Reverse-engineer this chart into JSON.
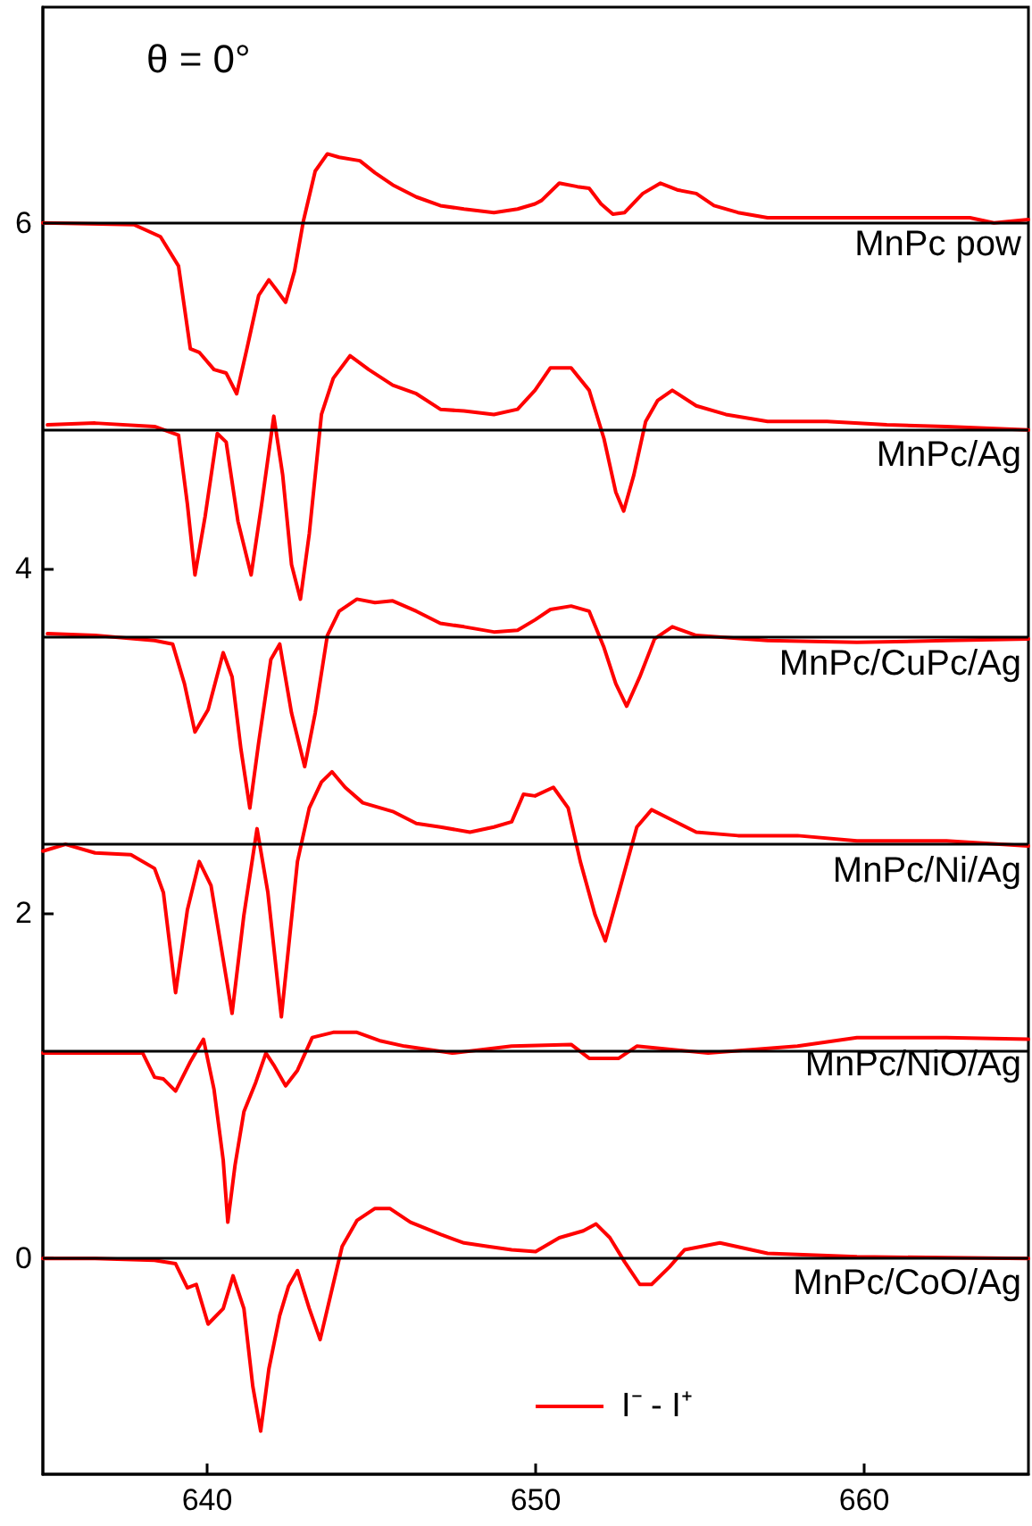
{
  "chart_data": {
    "type": "line",
    "title": "θ = 0°",
    "legend_title": "I⁻ - I⁺",
    "legend": "bottom",
    "grid": false,
    "marker": "none",
    "line_style": "solid",
    "xlim": [
      635,
      665
    ],
    "xticks": [
      640,
      650,
      660
    ],
    "ylim": [
      -1.25,
      7.25
    ],
    "yticks": [
      0,
      2,
      4,
      6
    ],
    "ref_lines": [
      {
        "axis": "y",
        "value": 6,
        "color": "#000000"
      },
      {
        "axis": "y",
        "value": 4.8,
        "color": "#000000"
      },
      {
        "axis": "y",
        "value": 3.6,
        "color": "#000000"
      },
      {
        "axis": "y",
        "value": 2.4,
        "color": "#000000"
      },
      {
        "axis": "y",
        "value": 1.2,
        "color": "#000000"
      },
      {
        "axis": "y",
        "value": 0,
        "color": "#000000"
      }
    ],
    "series": [
      {
        "name": "MnPc pow",
        "color": "#ff0000",
        "x": [
          635,
          637.77,
          638.58,
          639.13,
          639.49,
          639.76,
          640.21,
          640.58,
          640.9,
          641.21,
          641.57,
          641.88,
          642.12,
          642.39,
          642.66,
          642.93,
          643.29,
          643.66,
          644.02,
          644.65,
          645.11,
          645.65,
          646.37,
          647.1,
          647.82,
          648.73,
          649.45,
          649.98,
          650.18,
          650.72,
          651.27,
          651.63,
          651.99,
          652.35,
          652.71,
          653.26,
          653.8,
          654.34,
          654.89,
          655.43,
          656.16,
          657.06,
          658.87,
          661.59,
          663.22,
          663.95,
          665
        ],
        "values": [
          6.0,
          5.99,
          5.92,
          5.75,
          5.27,
          5.25,
          5.15,
          5.13,
          5.01,
          5.27,
          5.58,
          5.67,
          5.61,
          5.54,
          5.72,
          6.01,
          6.3,
          6.4,
          6.38,
          6.36,
          6.29,
          6.22,
          6.15,
          6.1,
          6.08,
          6.06,
          6.08,
          6.11,
          6.13,
          6.23,
          6.21,
          6.2,
          6.11,
          6.05,
          6.06,
          6.17,
          6.23,
          6.19,
          6.17,
          6.1,
          6.06,
          6.03,
          6.03,
          6.03,
          6.03,
          6.0,
          6.02
        ]
      },
      {
        "name": "MnPc/Ag",
        "color": "#ff0000",
        "x": [
          635.14,
          636.59,
          638.4,
          639.13,
          639.4,
          639.63,
          639.94,
          640.31,
          640.58,
          640.94,
          641.34,
          641.66,
          642.03,
          642.3,
          642.57,
          642.84,
          643.11,
          643.48,
          643.84,
          644.35,
          644.92,
          645.65,
          646.37,
          647.1,
          647.82,
          648.73,
          649.45,
          649.98,
          650.45,
          651.08,
          651.63,
          652.08,
          652.44,
          652.68,
          652.99,
          653.35,
          653.71,
          654.16,
          654.89,
          655.79,
          657.06,
          658.87,
          660.69,
          662.5,
          665
        ],
        "values": [
          4.83,
          4.84,
          4.82,
          4.77,
          4.37,
          3.96,
          4.3,
          4.78,
          4.73,
          4.27,
          3.96,
          4.37,
          4.88,
          4.54,
          4.02,
          3.82,
          4.2,
          4.89,
          5.1,
          5.23,
          5.15,
          5.06,
          5.01,
          4.92,
          4.91,
          4.89,
          4.92,
          5.03,
          5.16,
          5.16,
          5.03,
          4.75,
          4.44,
          4.33,
          4.54,
          4.85,
          4.97,
          5.03,
          4.94,
          4.89,
          4.85,
          4.85,
          4.83,
          4.82,
          4.8
        ]
      },
      {
        "name": "MnPc/CuPc/Ag",
        "color": "#ff0000",
        "x": [
          635.14,
          636.59,
          638.4,
          638.95,
          639.31,
          639.63,
          640.03,
          640.49,
          640.76,
          641.03,
          641.3,
          641.57,
          641.94,
          642.21,
          642.57,
          642.97,
          643.29,
          643.66,
          644.02,
          644.56,
          645.11,
          645.65,
          646.37,
          647.1,
          647.82,
          648.73,
          649.45,
          649.98,
          650.45,
          651.08,
          651.63,
          652.08,
          652.44,
          652.77,
          653.17,
          653.62,
          654.16,
          654.89,
          657.06,
          659.78,
          662.5,
          665
        ],
        "values": [
          3.62,
          3.61,
          3.58,
          3.56,
          3.33,
          3.05,
          3.18,
          3.51,
          3.37,
          2.95,
          2.61,
          2.99,
          3.47,
          3.56,
          3.16,
          2.85,
          3.16,
          3.61,
          3.75,
          3.82,
          3.8,
          3.81,
          3.75,
          3.68,
          3.66,
          3.63,
          3.64,
          3.7,
          3.76,
          3.78,
          3.75,
          3.54,
          3.33,
          3.2,
          3.37,
          3.59,
          3.66,
          3.61,
          3.58,
          3.57,
          3.58,
          3.59
        ]
      },
      {
        "name": "MnPc/Ni/Ag",
        "color": "#ff0000",
        "x": [
          635,
          635.69,
          636.59,
          637.68,
          638.4,
          638.67,
          639.04,
          639.4,
          639.76,
          640.12,
          640.76,
          641.12,
          641.52,
          641.85,
          642.26,
          642.75,
          643.11,
          643.48,
          643.8,
          644.2,
          644.74,
          645.65,
          646.37,
          647.1,
          648,
          648.73,
          649.27,
          649.63,
          649.98,
          650.54,
          650.99,
          651.36,
          651.81,
          652.12,
          652.53,
          653.08,
          653.53,
          654.16,
          654.89,
          656.16,
          657.97,
          659.78,
          662.5,
          665
        ],
        "values": [
          2.36,
          2.4,
          2.35,
          2.34,
          2.26,
          2.12,
          1.54,
          2.02,
          2.3,
          2.16,
          1.42,
          1.99,
          2.49,
          2.12,
          1.4,
          2.3,
          2.61,
          2.76,
          2.82,
          2.73,
          2.64,
          2.59,
          2.52,
          2.5,
          2.47,
          2.5,
          2.53,
          2.69,
          2.68,
          2.73,
          2.61,
          2.3,
          1.99,
          1.84,
          2.12,
          2.5,
          2.6,
          2.54,
          2.47,
          2.45,
          2.45,
          2.42,
          2.42,
          2.39
        ]
      },
      {
        "name": "MnPc/NiO/Ag",
        "color": "#ff0000",
        "x": [
          635,
          636.59,
          638.04,
          638.4,
          638.67,
          639.04,
          639.49,
          639.89,
          640.21,
          640.49,
          640.63,
          640.85,
          641.12,
          641.48,
          641.79,
          642.03,
          642.39,
          642.75,
          643.2,
          643.84,
          644.56,
          645.29,
          646.01,
          647.46,
          649.27,
          651.08,
          651.63,
          652.53,
          653.08,
          655.25,
          657.97,
          659.78,
          662.5,
          665
        ],
        "values": [
          1.19,
          1.19,
          1.19,
          1.05,
          1.04,
          0.97,
          1.14,
          1.27,
          0.98,
          0.57,
          0.21,
          0.54,
          0.85,
          1.02,
          1.19,
          1.12,
          1.0,
          1.09,
          1.28,
          1.31,
          1.31,
          1.26,
          1.23,
          1.19,
          1.23,
          1.24,
          1.16,
          1.16,
          1.23,
          1.19,
          1.23,
          1.28,
          1.28,
          1.27
        ]
      },
      {
        "name": "MnPc/CoO/Ag",
        "color": "#ff0000",
        "x": [
          635,
          636.59,
          638.4,
          639.04,
          639.4,
          639.67,
          640.03,
          640.49,
          640.79,
          641.12,
          641.39,
          641.63,
          641.88,
          642.21,
          642.48,
          642.75,
          643.11,
          643.44,
          643.75,
          644.11,
          644.56,
          645.11,
          645.56,
          646.19,
          647.1,
          647.82,
          648.55,
          649.27,
          650,
          650.72,
          651.45,
          651.84,
          652.26,
          652.71,
          653.17,
          653.53,
          654.07,
          654.53,
          655.61,
          657.06,
          659.78,
          665
        ],
        "values": [
          0.0,
          0.0,
          -0.01,
          -0.03,
          -0.17,
          -0.15,
          -0.38,
          -0.29,
          -0.1,
          -0.29,
          -0.74,
          -1.0,
          -0.64,
          -0.33,
          -0.16,
          -0.07,
          -0.29,
          -0.47,
          -0.22,
          0.07,
          0.22,
          0.29,
          0.29,
          0.21,
          0.14,
          0.09,
          0.07,
          0.05,
          0.04,
          0.12,
          0.16,
          0.2,
          0.12,
          -0.02,
          -0.15,
          -0.15,
          -0.05,
          0.05,
          0.09,
          0.03,
          0.01,
          0.0
        ]
      }
    ]
  }
}
